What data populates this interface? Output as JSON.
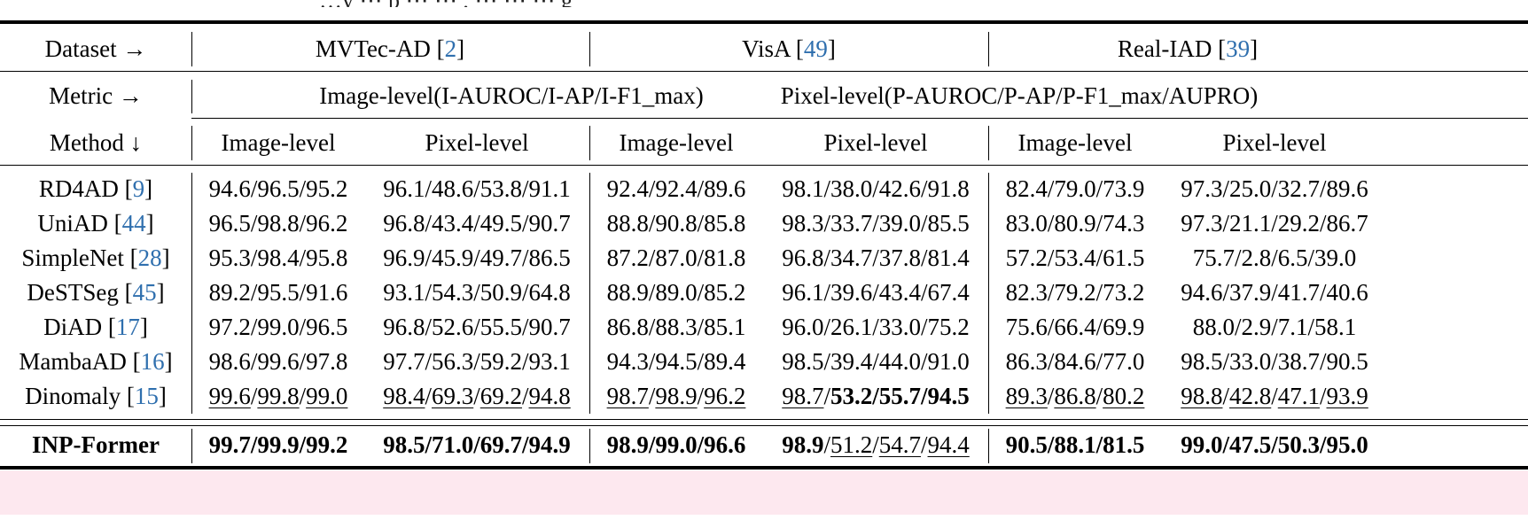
{
  "top_clip": {
    "text": "…y       ⋯ p                                                                         ⋯ ⋯      , ⋯ ⋯  ⋯ g"
  },
  "header": {
    "dataset_label": "Dataset →",
    "datasets": [
      {
        "name": "MVTec-AD",
        "cite": "2"
      },
      {
        "name": "VisA",
        "cite": "49"
      },
      {
        "name": "Real-IAD",
        "cite": "39"
      }
    ],
    "metric_label": "Metric →",
    "metric_image": "Image-level(I-AUROC/I-AP/I-F1_max)",
    "metric_pixel": "Pixel-level(P-AUROC/P-AP/P-F1_max/AUPRO)",
    "method_label": "Method ↓",
    "sub_image": "Image-level",
    "sub_pixel": "Pixel-level"
  },
  "rows": [
    {
      "method": "RD4AD",
      "cite": "9",
      "cells": [
        [
          {
            "t": "94.6/96.5/95.2"
          }
        ],
        [
          {
            "t": "96.1/48.6/53.8/91.1"
          }
        ],
        [
          {
            "t": "92.4/92.4/89.6"
          }
        ],
        [
          {
            "t": "98.1/38.0/42.6/91.8"
          }
        ],
        [
          {
            "t": "82.4/79.0/73.9"
          }
        ],
        [
          {
            "t": "97.3/25.0/32.7/89.6"
          }
        ]
      ]
    },
    {
      "method": "UniAD",
      "cite": "44",
      "cells": [
        [
          {
            "t": "96.5/98.8/96.2"
          }
        ],
        [
          {
            "t": "96.8/43.4/49.5/90.7"
          }
        ],
        [
          {
            "t": "88.8/90.8/85.8"
          }
        ],
        [
          {
            "t": "98.3/33.7/39.0/85.5"
          }
        ],
        [
          {
            "t": "83.0/80.9/74.3"
          }
        ],
        [
          {
            "t": "97.3/21.1/29.2/86.7"
          }
        ]
      ]
    },
    {
      "method": "SimpleNet",
      "cite": "28",
      "cells": [
        [
          {
            "t": "95.3/98.4/95.8"
          }
        ],
        [
          {
            "t": "96.9/45.9/49.7/86.5"
          }
        ],
        [
          {
            "t": "87.2/87.0/81.8"
          }
        ],
        [
          {
            "t": "96.8/34.7/37.8/81.4"
          }
        ],
        [
          {
            "t": "57.2/53.4/61.5"
          }
        ],
        [
          {
            "t": "75.7/2.8/6.5/39.0"
          }
        ]
      ]
    },
    {
      "method": "DeSTSeg",
      "cite": "45",
      "cells": [
        [
          {
            "t": "89.2/95.5/91.6"
          }
        ],
        [
          {
            "t": "93.1/54.3/50.9/64.8"
          }
        ],
        [
          {
            "t": "88.9/89.0/85.2"
          }
        ],
        [
          {
            "t": "96.1/39.6/43.4/67.4"
          }
        ],
        [
          {
            "t": "82.3/79.2/73.2"
          }
        ],
        [
          {
            "t": "94.6/37.9/41.7/40.6"
          }
        ]
      ]
    },
    {
      "method": "DiAD",
      "cite": "17",
      "cells": [
        [
          {
            "t": "97.2/99.0/96.5"
          }
        ],
        [
          {
            "t": "96.8/52.6/55.5/90.7"
          }
        ],
        [
          {
            "t": "86.8/88.3/85.1"
          }
        ],
        [
          {
            "t": "96.0/26.1/33.0/75.2"
          }
        ],
        [
          {
            "t": "75.6/66.4/69.9"
          }
        ],
        [
          {
            "t": "88.0/2.9/7.1/58.1"
          }
        ]
      ]
    },
    {
      "method": "MambaAD",
      "cite": "16",
      "cells": [
        [
          {
            "t": "98.6/99.6/97.8"
          }
        ],
        [
          {
            "t": "97.7/56.3/59.2/93.1"
          }
        ],
        [
          {
            "t": "94.3/94.5/89.4"
          }
        ],
        [
          {
            "t": "98.5/39.4/44.0/91.0"
          }
        ],
        [
          {
            "t": "86.3/84.6/77.0"
          }
        ],
        [
          {
            "t": "98.5/33.0/38.7/90.5"
          }
        ]
      ]
    },
    {
      "method": "Dinomaly",
      "cite": "15",
      "cells": [
        [
          {
            "t": "99.6",
            "s": "u"
          },
          {
            "t": "/"
          },
          {
            "t": "99.8",
            "s": "u"
          },
          {
            "t": "/"
          },
          {
            "t": "99.0",
            "s": "u"
          }
        ],
        [
          {
            "t": "98.4",
            "s": "u"
          },
          {
            "t": "/"
          },
          {
            "t": "69.3",
            "s": "u"
          },
          {
            "t": "/"
          },
          {
            "t": "69.2",
            "s": "u"
          },
          {
            "t": "/"
          },
          {
            "t": "94.8",
            "s": "u"
          }
        ],
        [
          {
            "t": "98.7",
            "s": "u"
          },
          {
            "t": "/"
          },
          {
            "t": "98.9",
            "s": "u"
          },
          {
            "t": "/"
          },
          {
            "t": "96.2",
            "s": "u"
          }
        ],
        [
          {
            "t": "98.7",
            "s": "u"
          },
          {
            "t": "/"
          },
          {
            "t": "53.2/55.7/94.5",
            "s": "b"
          }
        ],
        [
          {
            "t": "89.3",
            "s": "u"
          },
          {
            "t": "/"
          },
          {
            "t": "86.8",
            "s": "u"
          },
          {
            "t": "/"
          },
          {
            "t": "80.2",
            "s": "u"
          }
        ],
        [
          {
            "t": "98.8",
            "s": "u"
          },
          {
            "t": "/"
          },
          {
            "t": "42.8",
            "s": "u"
          },
          {
            "t": "/"
          },
          {
            "t": "47.1",
            "s": "u"
          },
          {
            "t": "/"
          },
          {
            "t": "93.9",
            "s": "u"
          }
        ]
      ]
    }
  ],
  "ours": {
    "method": "INP-Former",
    "cells": [
      [
        {
          "t": "99.7/99.9/99.2",
          "s": "b"
        }
      ],
      [
        {
          "t": "98.5/71.0/69.7/94.9",
          "s": "b"
        }
      ],
      [
        {
          "t": "98.9/99.0/96.6",
          "s": "b"
        }
      ],
      [
        {
          "t": "98.9",
          "s": "b"
        },
        {
          "t": "/"
        },
        {
          "t": "51.2",
          "s": "u"
        },
        {
          "t": "/"
        },
        {
          "t": "54.7",
          "s": "u"
        },
        {
          "t": "/"
        },
        {
          "t": "94.4",
          "s": "u"
        }
      ],
      [
        {
          "t": "90.5/88.1/81.5",
          "s": "b"
        }
      ],
      [
        {
          "t": "99.0/47.5/50.3/95.0",
          "s": "b"
        }
      ]
    ]
  }
}
